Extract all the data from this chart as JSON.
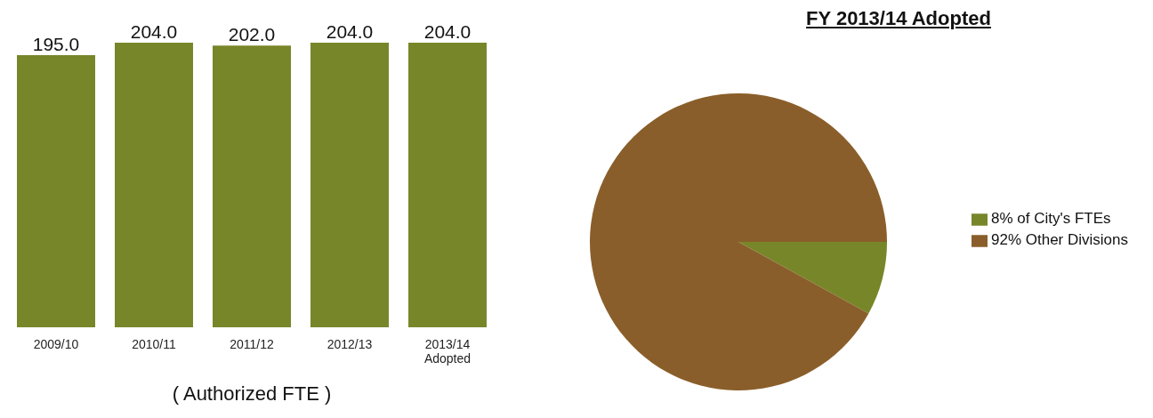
{
  "chart_data": [
    {
      "type": "bar",
      "categories": [
        "2009/10",
        "2010/11",
        "2011/12",
        "2012/13",
        "2013/14 Adopted"
      ],
      "values": [
        195.0,
        204.0,
        202.0,
        204.0,
        204.0
      ],
      "value_labels": [
        "195.0",
        "204.0",
        "202.0",
        "204.0",
        "204.0"
      ],
      "color": "#78862a",
      "xlabel": "( Authorized FTE )"
    },
    {
      "type": "pie",
      "title": "FY 2013/14 Adopted",
      "categories": [
        "8% of City's FTEs",
        "92% Other Divisions"
      ],
      "values": [
        8,
        92
      ],
      "colors": [
        "#78862a",
        "#8a5e2a"
      ],
      "legend": "right"
    }
  ]
}
